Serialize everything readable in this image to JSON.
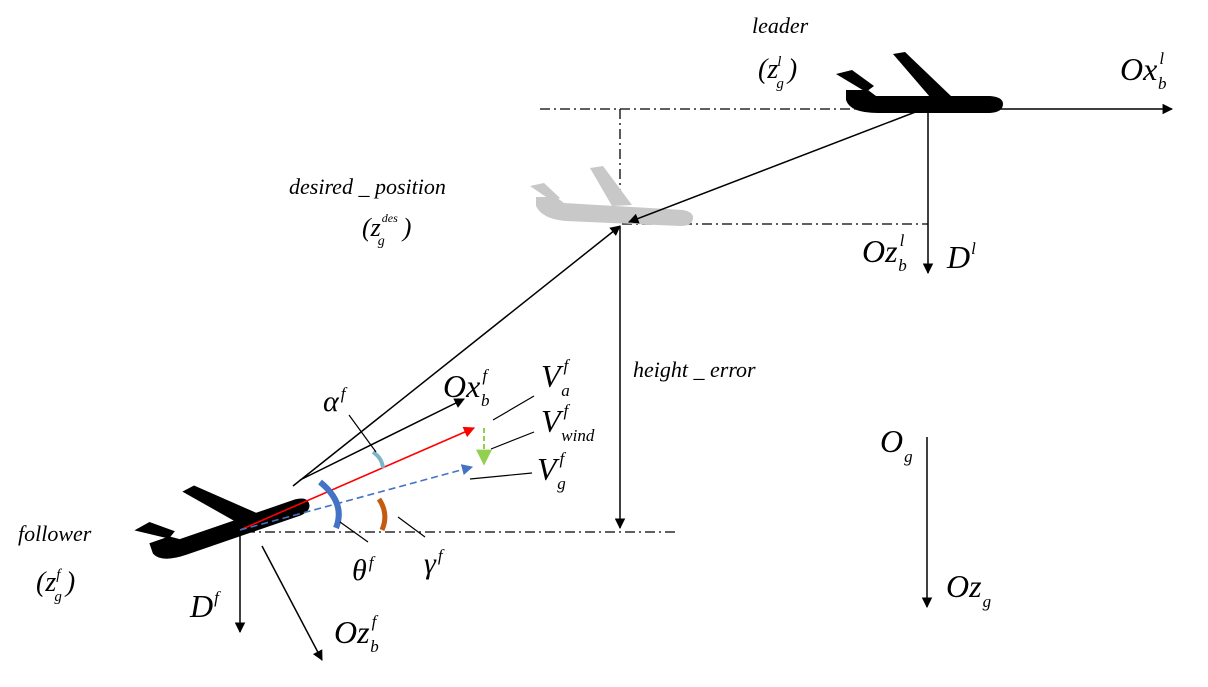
{
  "leader": {
    "label": "leader",
    "state_open": "(z",
    "state_sub": "g",
    "state_sup": "l",
    "state_close": ")",
    "axis_x_main": "Ox",
    "axis_x_sub": "b",
    "axis_x_sup": "l",
    "axis_z_main": "Oz",
    "axis_z_sub": "b",
    "axis_z_sup": "l",
    "drag_main": "D",
    "drag_sup": "l"
  },
  "desired": {
    "label": "desired _ position",
    "state_open": "(z",
    "state_sub": "g",
    "state_sup": "des",
    "state_close": ")"
  },
  "follower": {
    "label": "follower",
    "state_open": "(z",
    "state_sub": "g",
    "state_sup": "f",
    "state_close": ")",
    "axis_x_main": "Ox",
    "axis_x_sub": "b",
    "axis_x_sup": "f",
    "axis_z_main": "Oz",
    "axis_z_sub": "b",
    "axis_z_sup": "f",
    "drag_main": "D",
    "drag_sup": "f"
  },
  "velocities": {
    "air_main": "V",
    "air_sub": "a",
    "air_sup": "f",
    "wind_main": "V",
    "wind_sub": "wind",
    "wind_sup": "f",
    "ground_main": "V",
    "ground_sub": "g",
    "ground_sup": "f"
  },
  "angles": {
    "alpha_main": "α",
    "alpha_sup": "f",
    "theta_main": "θ",
    "theta_sup": "f",
    "gamma_main": "γ",
    "gamma_sup": "f"
  },
  "height_error": "height _ error",
  "ground_frame": {
    "origin_main": "O",
    "origin_sub": "g",
    "z_main": "Oz",
    "z_sub": "g"
  },
  "colors": {
    "airspeed": "#ff0000",
    "wind": "#92d050",
    "groundspeed": "#4472c4",
    "theta_arc": "#4472c4",
    "gamma_arc": "#c55a11",
    "alpha_arc": "#7fb4c8",
    "desired_plane": "#c8c8c8",
    "aircraft": "#000000"
  }
}
